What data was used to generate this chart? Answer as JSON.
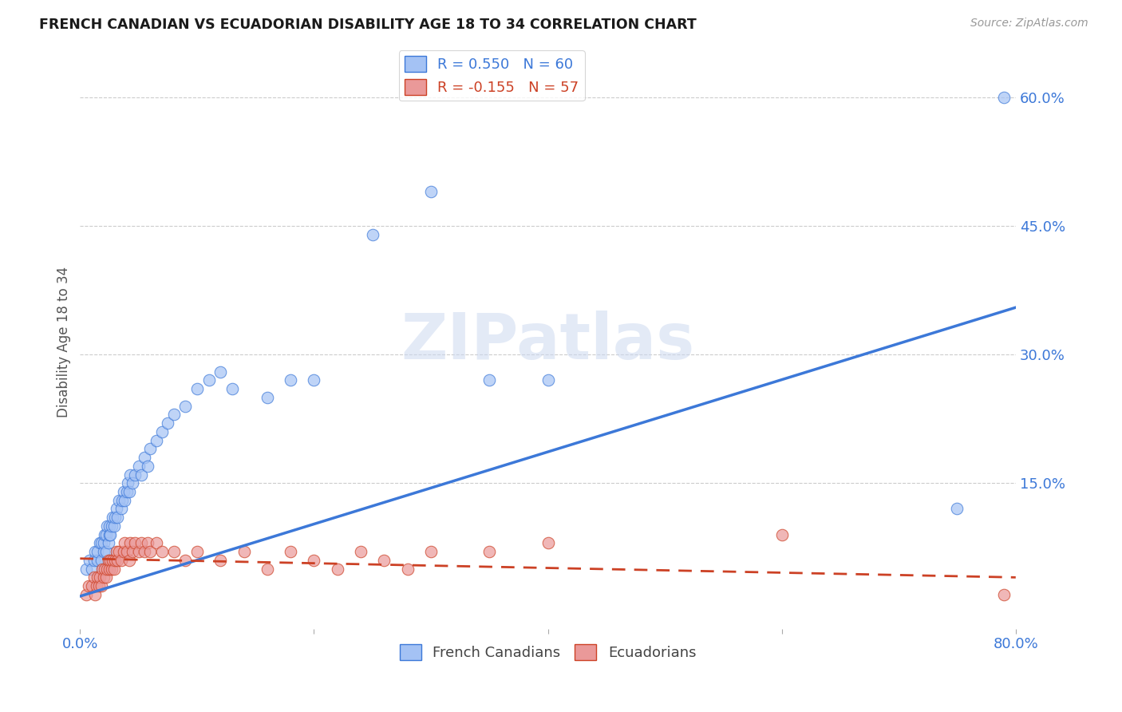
{
  "title": "FRENCH CANADIAN VS ECUADORIAN DISABILITY AGE 18 TO 34 CORRELATION CHART",
  "source": "Source: ZipAtlas.com",
  "ylabel": "Disability Age 18 to 34",
  "xlim": [
    0.0,
    0.8
  ],
  "ylim": [
    -0.02,
    0.65
  ],
  "ytick_labels_right": [
    "60.0%",
    "45.0%",
    "30.0%",
    "15.0%"
  ],
  "ytick_vals_right": [
    0.6,
    0.45,
    0.3,
    0.15
  ],
  "watermark": "ZIPatlas",
  "blue_color": "#a4c2f4",
  "pink_color": "#ea9999",
  "blue_line_color": "#3c78d8",
  "pink_line_color": "#cc4125",
  "pink_line_dash": [
    6,
    4
  ],
  "R_blue": 0.55,
  "N_blue": 60,
  "R_pink": -0.155,
  "N_pink": 57,
  "blue_x": [
    0.005,
    0.008,
    0.01,
    0.012,
    0.013,
    0.015,
    0.015,
    0.017,
    0.018,
    0.018,
    0.02,
    0.02,
    0.021,
    0.022,
    0.022,
    0.023,
    0.024,
    0.025,
    0.025,
    0.026,
    0.027,
    0.028,
    0.029,
    0.03,
    0.031,
    0.032,
    0.033,
    0.035,
    0.036,
    0.037,
    0.038,
    0.04,
    0.041,
    0.042,
    0.043,
    0.045,
    0.047,
    0.05,
    0.052,
    0.055,
    0.058,
    0.06,
    0.065,
    0.07,
    0.075,
    0.08,
    0.09,
    0.1,
    0.11,
    0.12,
    0.13,
    0.16,
    0.18,
    0.2,
    0.25,
    0.3,
    0.35,
    0.4,
    0.75,
    0.79
  ],
  "blue_y": [
    0.05,
    0.06,
    0.05,
    0.06,
    0.07,
    0.06,
    0.07,
    0.08,
    0.06,
    0.08,
    0.07,
    0.08,
    0.09,
    0.07,
    0.09,
    0.1,
    0.08,
    0.09,
    0.1,
    0.09,
    0.1,
    0.11,
    0.1,
    0.11,
    0.12,
    0.11,
    0.13,
    0.12,
    0.13,
    0.14,
    0.13,
    0.14,
    0.15,
    0.14,
    0.16,
    0.15,
    0.16,
    0.17,
    0.16,
    0.18,
    0.17,
    0.19,
    0.2,
    0.21,
    0.22,
    0.23,
    0.24,
    0.26,
    0.27,
    0.28,
    0.26,
    0.25,
    0.27,
    0.27,
    0.44,
    0.49,
    0.27,
    0.27,
    0.12,
    0.6
  ],
  "pink_x": [
    0.005,
    0.007,
    0.01,
    0.012,
    0.013,
    0.014,
    0.015,
    0.016,
    0.017,
    0.018,
    0.019,
    0.02,
    0.021,
    0.022,
    0.023,
    0.024,
    0.025,
    0.026,
    0.027,
    0.028,
    0.029,
    0.03,
    0.031,
    0.032,
    0.033,
    0.035,
    0.037,
    0.038,
    0.04,
    0.042,
    0.043,
    0.045,
    0.047,
    0.05,
    0.052,
    0.055,
    0.058,
    0.06,
    0.065,
    0.07,
    0.08,
    0.09,
    0.1,
    0.12,
    0.14,
    0.16,
    0.18,
    0.2,
    0.22,
    0.24,
    0.26,
    0.28,
    0.3,
    0.35,
    0.4,
    0.6,
    0.79
  ],
  "pink_y": [
    0.02,
    0.03,
    0.03,
    0.04,
    0.02,
    0.03,
    0.04,
    0.03,
    0.04,
    0.03,
    0.05,
    0.04,
    0.05,
    0.04,
    0.05,
    0.06,
    0.05,
    0.06,
    0.05,
    0.06,
    0.05,
    0.06,
    0.07,
    0.06,
    0.07,
    0.06,
    0.07,
    0.08,
    0.07,
    0.06,
    0.08,
    0.07,
    0.08,
    0.07,
    0.08,
    0.07,
    0.08,
    0.07,
    0.08,
    0.07,
    0.07,
    0.06,
    0.07,
    0.06,
    0.07,
    0.05,
    0.07,
    0.06,
    0.05,
    0.07,
    0.06,
    0.05,
    0.07,
    0.07,
    0.08,
    0.09,
    0.02
  ],
  "blue_trend_x": [
    0.0,
    0.8
  ],
  "blue_trend_y": [
    0.018,
    0.355
  ],
  "pink_trend_x": [
    0.0,
    0.8
  ],
  "pink_trend_y": [
    0.062,
    0.04
  ]
}
